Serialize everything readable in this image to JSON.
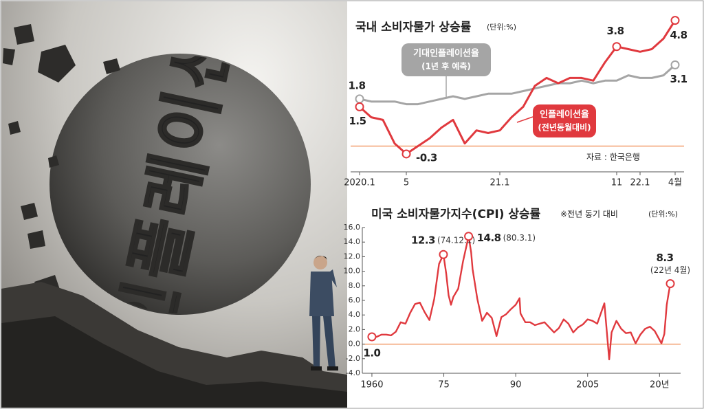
{
  "illustration": {
    "text": "인플레이션"
  },
  "chart_data": [
    {
      "type": "line",
      "title": "국내 소비자물가 상승률",
      "unit": "(단위:%)",
      "source": "자료 : 한국은행",
      "categories": [
        "2020.1",
        null,
        null,
        null,
        "5",
        null,
        null,
        null,
        null,
        null,
        null,
        null,
        "21.1",
        null,
        null,
        null,
        null,
        null,
        null,
        null,
        null,
        null,
        "11",
        null,
        "22.1",
        null,
        null,
        "4월"
      ],
      "ylim": [
        -0.8,
        5.0
      ],
      "series": [
        {
          "name": "기대인플레이션율",
          "note": "(1년 후 예측)",
          "color": "#a5a5a5",
          "values": [
            1.8,
            1.7,
            1.7,
            1.7,
            1.6,
            1.6,
            1.7,
            1.8,
            1.9,
            1.8,
            1.9,
            2.0,
            2.0,
            2.0,
            2.1,
            2.2,
            2.3,
            2.4,
            2.4,
            2.5,
            2.4,
            2.5,
            2.5,
            2.7,
            2.6,
            2.6,
            2.7,
            3.1
          ],
          "value_labels": [
            "1.8",
            null,
            null,
            null,
            null,
            null,
            null,
            null,
            null,
            null,
            null,
            null,
            null,
            null,
            null,
            null,
            null,
            null,
            null,
            null,
            null,
            null,
            null,
            null,
            null,
            null,
            null,
            "3.1"
          ]
        },
        {
          "name": "인플레이션율",
          "note": "(전년동월대비)",
          "color": "#e0393e",
          "values": [
            1.5,
            1.1,
            1.0,
            0.1,
            -0.3,
            0.0,
            0.3,
            0.7,
            1.0,
            0.1,
            0.6,
            0.5,
            0.6,
            1.1,
            1.5,
            2.3,
            2.6,
            2.4,
            2.6,
            2.6,
            2.5,
            3.2,
            3.8,
            3.7,
            3.6,
            3.7,
            4.1,
            4.8
          ],
          "value_labels": [
            "1.5",
            null,
            null,
            null,
            "-0.3",
            null,
            null,
            null,
            null,
            null,
            null,
            null,
            null,
            null,
            null,
            null,
            null,
            null,
            null,
            null,
            null,
            null,
            "3.8",
            null,
            null,
            null,
            null,
            "4.8"
          ]
        }
      ]
    },
    {
      "type": "line",
      "title": "미국 소비자물가지수(CPI) 상승률",
      "note": "※전년 동기 대비",
      "unit": "(단위:%)",
      "x": [
        1960,
        1961,
        1962,
        1963,
        1964,
        1965,
        1966,
        1967,
        1968,
        1969,
        1970,
        1971,
        1972,
        1973,
        1974,
        1974.92,
        1975.5,
        1976,
        1976.5,
        1977,
        1978,
        1979,
        1980.17,
        1980.7,
        1981,
        1982,
        1983,
        1984,
        1985,
        1986,
        1987,
        1988,
        1989,
        1990,
        1990.8,
        1991,
        1992,
        1993,
        1994,
        1995,
        1996,
        1997,
        1998,
        1999,
        2000,
        2001,
        2002,
        2003,
        2004,
        2005,
        2006,
        2007,
        2008.5,
        2009.5,
        2010,
        2011,
        2012,
        2013,
        2014,
        2015,
        2016,
        2017,
        2018,
        2019,
        2020.4,
        2021,
        2021.5,
        2021.9,
        2022.25
      ],
      "xlim": [
        1958,
        2024.4
      ],
      "xticks": [
        1960,
        {
          "value": 1975,
          "label": "75"
        },
        {
          "value": 1990,
          "label": "90"
        },
        2005,
        {
          "value": 2020,
          "label": "20년"
        }
      ],
      "ylim": [
        -4,
        16
      ],
      "yticks": [
        {
          "value": -4,
          "label": "-4.0"
        },
        {
          "value": -2,
          "label": "-2.0"
        },
        {
          "value": 0,
          "label": "0.0"
        },
        {
          "value": 2,
          "label": "2.0"
        },
        {
          "value": 4,
          "label": "4.0"
        },
        {
          "value": 6,
          "label": "6.0"
        },
        {
          "value": 8,
          "label": "8.0"
        },
        {
          "value": 10,
          "label": "10.0"
        },
        {
          "value": 12,
          "label": "12.0"
        },
        {
          "value": 14,
          "label": "14.0"
        },
        {
          "value": 16,
          "label": "16.0"
        }
      ],
      "series": [
        {
          "color": "#e0393e",
          "values": [
            1.0,
            1.0,
            1.3,
            1.3,
            1.2,
            1.7,
            3.0,
            2.8,
            4.3,
            5.5,
            5.7,
            4.4,
            3.3,
            6.2,
            11.0,
            12.3,
            9.7,
            6.7,
            5.4,
            6.5,
            7.6,
            11.3,
            14.8,
            12.6,
            10.3,
            6.2,
            3.2,
            4.3,
            3.6,
            1.1,
            3.7,
            4.1,
            4.8,
            5.4,
            6.3,
            4.2,
            3.0,
            3.0,
            2.6,
            2.8,
            3.0,
            2.3,
            1.6,
            2.2,
            3.4,
            2.8,
            1.6,
            2.3,
            2.7,
            3.4,
            3.2,
            2.8,
            5.6,
            -2.1,
            1.6,
            3.2,
            2.1,
            1.5,
            1.6,
            0.1,
            1.3,
            2.1,
            2.4,
            1.8,
            0.1,
            1.4,
            5.4,
            7.0,
            8.3
          ],
          "value_labels": [
            "1.0",
            null,
            null,
            null,
            null,
            null,
            null,
            null,
            null,
            null,
            null,
            null,
            null,
            null,
            null,
            "12.3",
            null,
            null,
            null,
            null,
            null,
            null,
            "14.8",
            null,
            null,
            null,
            null,
            null,
            null,
            null,
            null,
            null,
            null,
            null,
            null,
            null,
            null,
            null,
            null,
            null,
            null,
            null,
            null,
            null,
            null,
            null,
            null,
            null,
            null,
            null,
            null,
            null,
            null,
            null,
            null,
            null,
            null,
            null,
            null,
            null,
            null,
            null,
            null,
            null,
            null,
            null,
            null,
            null,
            "8.3"
          ],
          "value_notes": [
            null,
            null,
            null,
            null,
            null,
            null,
            null,
            null,
            null,
            null,
            null,
            null,
            null,
            null,
            null,
            "(74.12.1)",
            null,
            null,
            null,
            null,
            null,
            null,
            "(80.3.1)",
            null,
            null,
            null,
            null,
            null,
            null,
            null,
            null,
            null,
            null,
            null,
            null,
            null,
            null,
            null,
            null,
            null,
            null,
            null,
            null,
            null,
            null,
            null,
            null,
            null,
            null,
            null,
            null,
            null,
            null,
            null,
            null,
            null,
            null,
            null,
            null,
            null,
            null,
            null,
            null,
            null,
            null,
            null,
            null,
            null,
            "(22년 4월)"
          ]
        }
      ]
    }
  ]
}
